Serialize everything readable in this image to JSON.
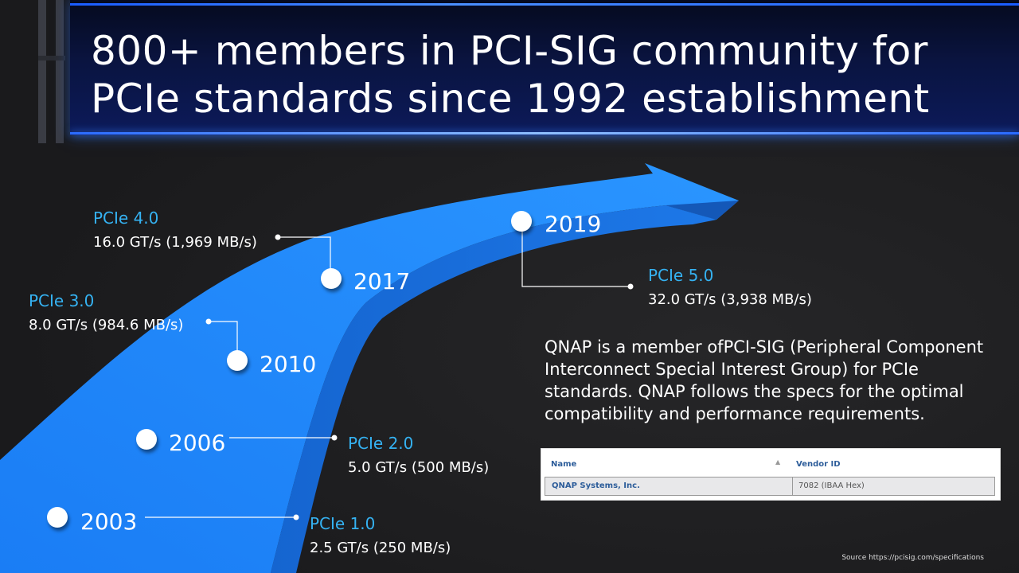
{
  "title": "800+ members in PCI-SIG community for PCIe standards since 1992 establishment",
  "timeline": [
    {
      "year": "2003",
      "generation": "PCIe 1.0",
      "speed": "2.5 GT/s (250 MB/s)"
    },
    {
      "year": "2006",
      "generation": "PCIe 2.0",
      "speed": "5.0 GT/s (500 MB/s)"
    },
    {
      "year": "2010",
      "generation": "PCIe 3.0",
      "speed": "8.0 GT/s (984.6 MB/s)"
    },
    {
      "year": "2017",
      "generation": "PCIe 4.0",
      "speed": "16.0 GT/s (1,969 MB/s)"
    },
    {
      "year": "2019",
      "generation": "PCIe 5.0",
      "speed": "32.0 GT/s (3,938 MB/s)"
    }
  ],
  "description": "QNAP is a member ofPCI-SIG (Peripheral Component Interconnect Special Interest Group) for PCIe standards. QNAP follows the specs for the optimal compatibility and performance requirements.",
  "vendor_table": {
    "col_name": "Name",
    "col_vendor_id": "Vendor ID",
    "row_name": "QNAP Systems, Inc.",
    "row_vendor_id": "7082 (IBAA Hex)"
  },
  "source": "Source https://pcisig.com/specifications",
  "colors": {
    "accent": "#35b2f2",
    "arrow": "#1f8cff",
    "header": "#0a1440"
  }
}
